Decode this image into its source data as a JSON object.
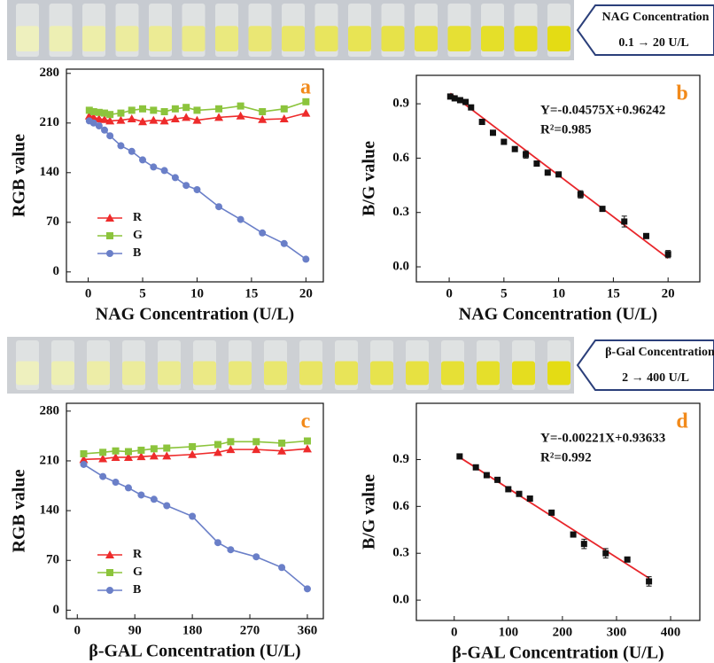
{
  "banners": [
    {
      "title": "NAG Concentration",
      "range": "0.1 → 20 U/L"
    },
    {
      "title": "β-Gal Concentration",
      "range": "2 → 400 U/L"
    }
  ],
  "chart_data": [
    {
      "type": "line",
      "panel_label": "a",
      "xlabel": "NAG Concentration (U/L)",
      "ylabel": "RGB value",
      "x": [
        0.1,
        0.5,
        1,
        1.5,
        2,
        3,
        4,
        5,
        6,
        7,
        8,
        9,
        10,
        12,
        14,
        16,
        18,
        20
      ],
      "series": [
        {
          "name": "R",
          "color": "#ee2b2b",
          "marker": "triangle",
          "values": [
            220,
            218,
            216,
            215,
            213,
            214,
            216,
            212,
            214,
            213,
            216,
            218,
            214,
            218,
            220,
            215,
            216,
            224
          ]
        },
        {
          "name": "G",
          "color": "#8cc43c",
          "marker": "square",
          "values": [
            228,
            226,
            225,
            224,
            222,
            224,
            228,
            230,
            228,
            226,
            230,
            232,
            228,
            230,
            234,
            226,
            230,
            240
          ]
        },
        {
          "name": "B",
          "color": "#6a7fc8",
          "marker": "circle",
          "values": [
            213,
            210,
            206,
            200,
            192,
            178,
            170,
            158,
            148,
            143,
            133,
            122,
            116,
            92,
            74,
            55,
            40,
            18
          ]
        }
      ],
      "xlim": [
        -2,
        21.6
      ],
      "ylim": [
        -14,
        286
      ],
      "xticks": [
        0,
        5,
        10,
        15,
        20
      ],
      "yticks": [
        0,
        70,
        140,
        210,
        280
      ],
      "legend": "lower left"
    },
    {
      "type": "scatter",
      "panel_label": "b",
      "xlabel": "NAG Concentration (U/L)",
      "ylabel": "B/G value",
      "x": [
        0.1,
        0.5,
        1,
        1.5,
        2,
        3,
        4,
        5,
        6,
        7,
        8,
        9,
        10,
        12,
        14,
        16,
        18,
        20
      ],
      "values": [
        0.94,
        0.93,
        0.92,
        0.91,
        0.88,
        0.8,
        0.74,
        0.69,
        0.65,
        0.62,
        0.57,
        0.52,
        0.51,
        0.4,
        0.32,
        0.25,
        0.17,
        0.07
      ],
      "errors": [
        0.01,
        0.01,
        0.01,
        0.01,
        0.01,
        0.01,
        0.01,
        0.01,
        0.01,
        0.02,
        0.01,
        0.01,
        0.01,
        0.02,
        0.01,
        0.03,
        0.01,
        0.02
      ],
      "color": "#111111",
      "fit": {
        "slope": -0.04575,
        "intercept": 0.96242,
        "label": "Y=-0.04575X+0.96242",
        "color": "#e8262b"
      },
      "r2": "R²=0.985",
      "xlim": [
        -3,
        22.9
      ],
      "ylim": [
        -0.083,
        1.057
      ],
      "xticks": [
        0,
        5,
        10,
        15,
        20
      ],
      "yticks": [
        {
          "value": 0,
          "label": "0.0"
        },
        0.3,
        0.6,
        0.9
      ]
    },
    {
      "type": "line",
      "panel_label": "c",
      "xlabel": "β-GAL Concentration (U/L)",
      "ylabel": "RGB value",
      "x": [
        10,
        40,
        60,
        80,
        100,
        120,
        140,
        180,
        220,
        240,
        280,
        320,
        360
      ],
      "series": [
        {
          "name": "R",
          "color": "#ee2b2b",
          "marker": "triangle",
          "values": [
            212,
            213,
            215,
            215,
            216,
            217,
            217,
            219,
            222,
            226,
            226,
            224,
            227
          ]
        },
        {
          "name": "G",
          "color": "#8cc43c",
          "marker": "square",
          "values": [
            220,
            222,
            224,
            223,
            225,
            227,
            228,
            230,
            233,
            237,
            237,
            235,
            238
          ]
        },
        {
          "name": "B",
          "color": "#6a7fc8",
          "marker": "circle",
          "values": [
            205,
            188,
            180,
            172,
            162,
            156,
            147,
            132,
            95,
            85,
            75,
            60,
            30
          ]
        }
      ],
      "xlim": [
        -17,
        385
      ],
      "ylim": [
        -12,
        291
      ],
      "xticks": [
        0,
        90,
        180,
        270,
        360
      ],
      "yticks": [
        0,
        70,
        140,
        210,
        280
      ],
      "legend": "lower left"
    },
    {
      "type": "scatter",
      "panel_label": "d",
      "xlabel": "β-GAL Concentration (U/L)",
      "ylabel": "B/G value",
      "x": [
        10,
        40,
        60,
        80,
        100,
        120,
        140,
        180,
        220,
        240,
        280,
        320,
        360
      ],
      "values": [
        0.92,
        0.85,
        0.8,
        0.77,
        0.71,
        0.68,
        0.65,
        0.56,
        0.42,
        0.36,
        0.3,
        0.26,
        0.12
      ],
      "errors": [
        0.01,
        0.01,
        0.01,
        0.01,
        0.01,
        0.01,
        0.01,
        0.015,
        0.01,
        0.03,
        0.03,
        0.015,
        0.03
      ],
      "color": "#111111",
      "fit": {
        "slope": -0.00221,
        "intercept": 0.93633,
        "label": "Y=-0.00221X+0.93633",
        "color": "#e8262b"
      },
      "r2": "R²=0.992",
      "xlim": [
        -70,
        454
      ],
      "ylim": [
        -0.13,
        1.26
      ],
      "xticks": [
        0,
        100,
        200,
        300,
        400
      ],
      "yticks": [
        {
          "value": 0,
          "label": "0.0"
        },
        0.3,
        0.6,
        0.9
      ]
    }
  ]
}
